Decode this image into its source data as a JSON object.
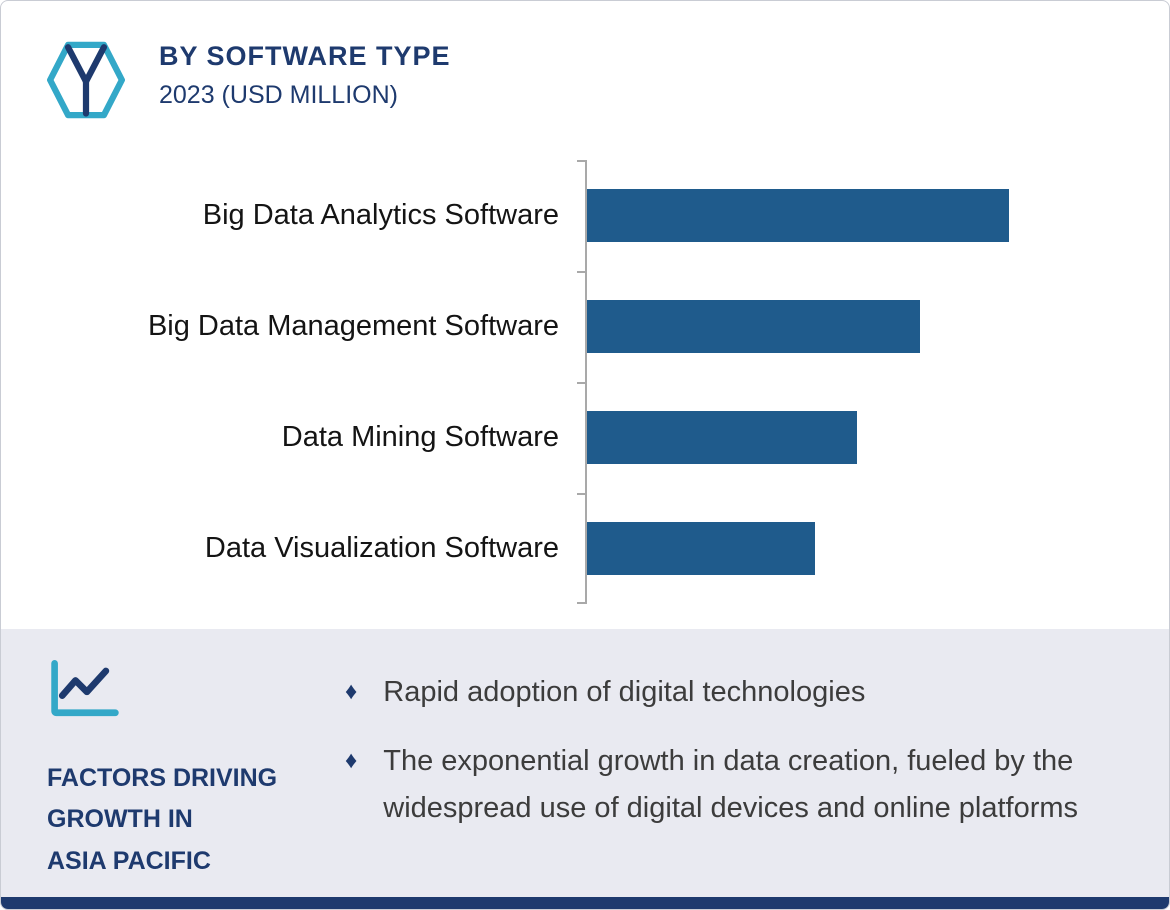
{
  "header": {
    "title": "BY SOFTWARE TYPE",
    "subtitle": "2023 (USD MILLION)",
    "logo_icon": "hexagon-cube-logo"
  },
  "chart_data": {
    "type": "bar",
    "orientation": "horizontal",
    "title": "BY SOFTWARE TYPE",
    "subtitle": "2023 (USD MILLION)",
    "unit": "USD Million",
    "categories": [
      "Big Data Analytics Software",
      "Big Data Management Software",
      "Data Mining Software",
      "Data Visualization Software"
    ],
    "values": [
      100,
      79,
      64,
      54
    ],
    "xlim": [
      0,
      100
    ],
    "grid": false,
    "legend": false,
    "value_labels": false
  },
  "factors": {
    "heading_lines": [
      "FACTORS DRIVING",
      "GROWTH IN",
      "ASIA PACIFIC"
    ],
    "icon": "line-chart-icon",
    "bullet_glyph": "♦",
    "items": [
      "Rapid adoption of digital technologies",
      "The exponential growth in data creation, fueled by the widespread use of digital devices and online platforms"
    ]
  },
  "colors": {
    "bar": "#1F5B8C",
    "navy": "#1E3A6E",
    "teal": "#33A8C8",
    "footer-bg": "#E9EAF1",
    "axis": "#A9A9A9",
    "text": "#141414",
    "body-text": "#3C3C3C",
    "border": "#C9CCD4"
  }
}
